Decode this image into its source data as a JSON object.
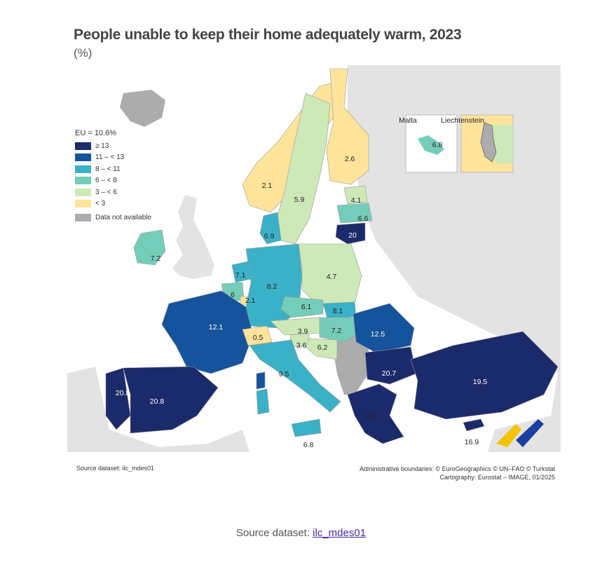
{
  "title": "People unable to keep their home adequately warm, 2023",
  "subtitle": "(%)",
  "legend": {
    "eu": "EU = 10.6%",
    "classes": [
      {
        "label": "≥ 13",
        "color": "#1b2a6b"
      },
      {
        "label": "11 – < 13",
        "color": "#15549c"
      },
      {
        "label": "8 – < 11",
        "color": "#3bb1c7"
      },
      {
        "label": "6 – < 8",
        "color": "#74cdb9"
      },
      {
        "label": "3 – < 6",
        "color": "#cde9b8"
      },
      {
        "label": "< 3",
        "color": "#fde49a"
      }
    ],
    "not_available": "Data not available",
    "not_available_color": "#acacac"
  },
  "insets": {
    "malta": "Malta",
    "liechtenstein": "Liechtenstein"
  },
  "values": {
    "norway": "2.1",
    "sweden": "5.9",
    "finland": "2.6",
    "estonia": "4.1",
    "latvia": "6.6",
    "lithuania": "20",
    "denmark": "6.9",
    "ireland": "7.2",
    "netherlands": "7.1",
    "belgium": "6",
    "luxembourg": "2.1",
    "germany": "8.2",
    "poland": "4.7",
    "czechia": "6.1",
    "slovakia": "8.1",
    "austria": "3.9",
    "hungary": "7.2",
    "romania": "12.5",
    "france": "12.1",
    "switzerland": "0.5",
    "slovenia": "3.6",
    "croatia": "6.2",
    "italy": "9.5",
    "bulgaria": "20.7",
    "turkey": "19.5",
    "greece": "19.2",
    "portugal": "20.8",
    "spain": "20.8",
    "malta_inset": "6.8",
    "malta": "6.8",
    "cyprus": "16.9"
  },
  "source_small": "Source dataset: ilc_mdes01",
  "credits_line1": "Administrative boundaries: © EuroGeographics © UN–FAO © Turkstat",
  "credits_line2": "Cartography: Eurostat – IMAGE, 01/2025",
  "footer_prefix": "Source dataset: ",
  "footer_link": "ilc_mdes01"
}
